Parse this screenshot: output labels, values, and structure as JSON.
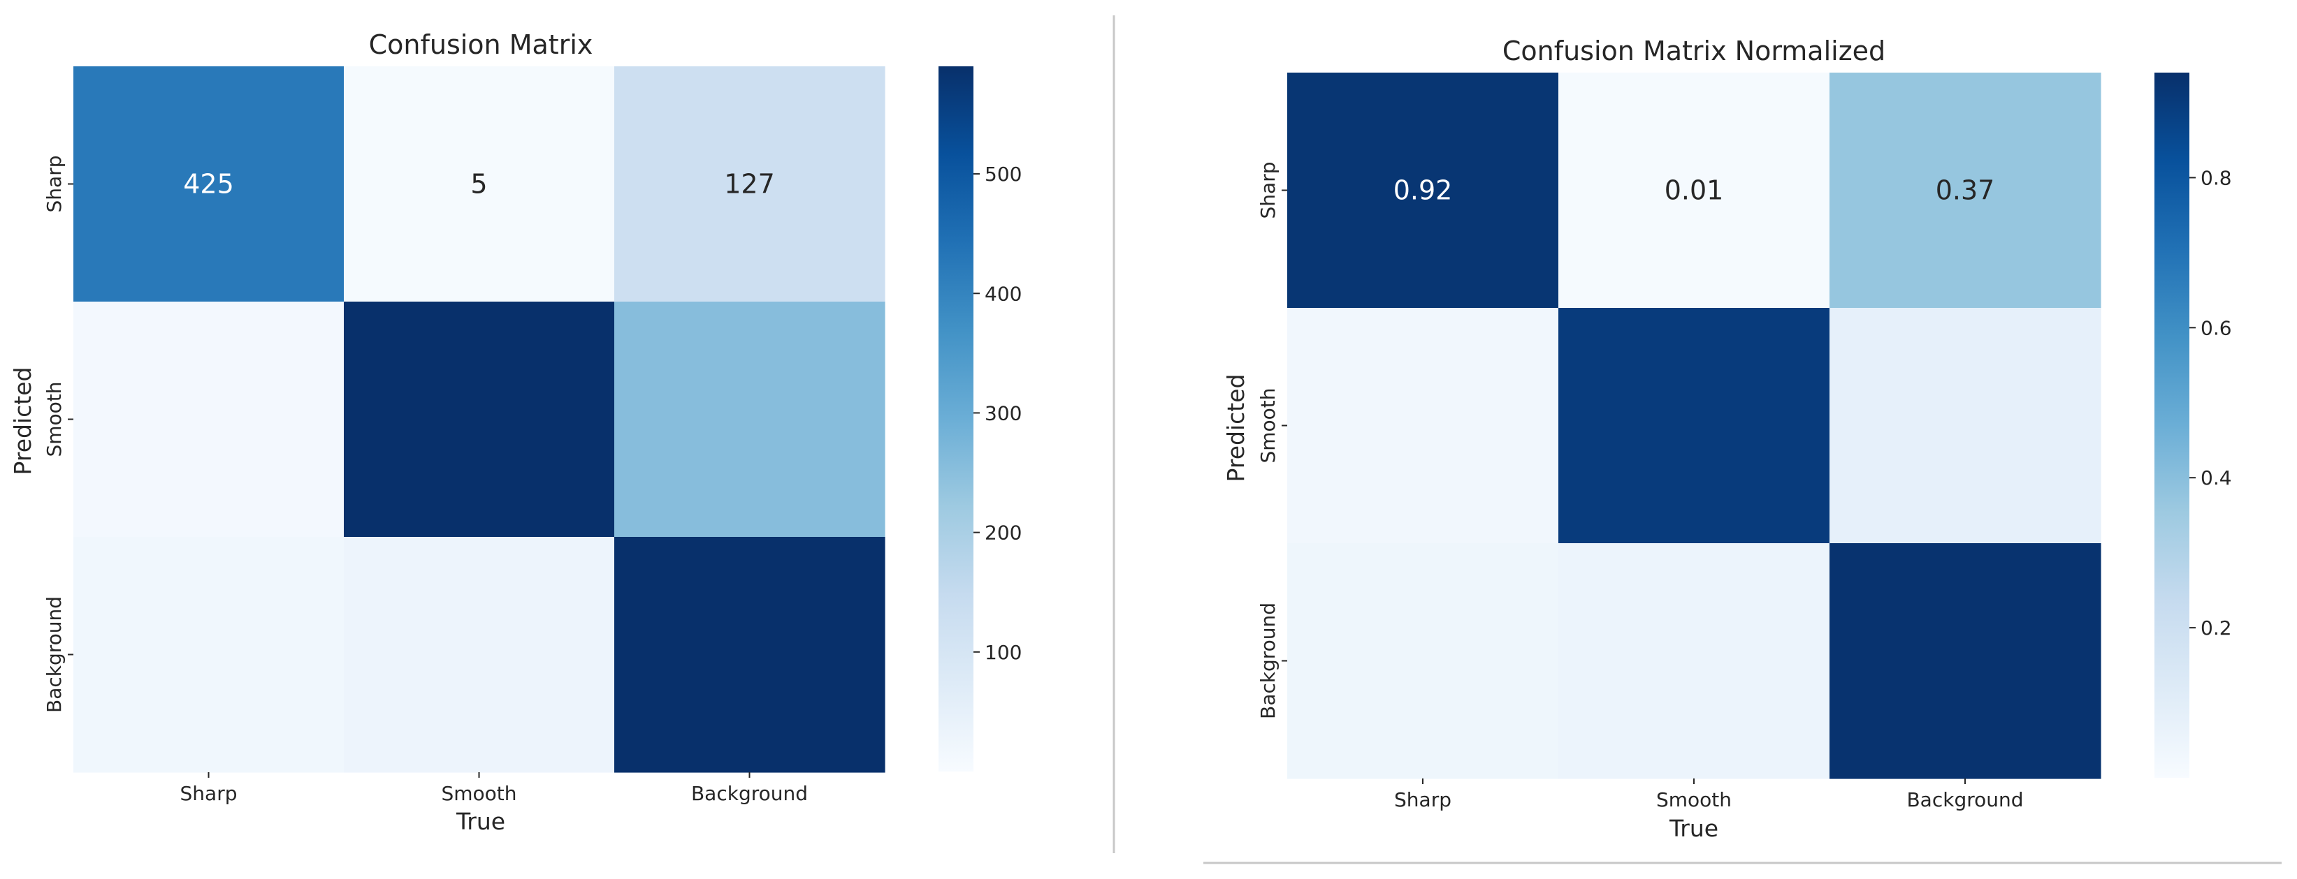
{
  "chart_data": [
    {
      "type": "heatmap",
      "title": "Confusion Matrix",
      "xlabel": "True",
      "ylabel": "Predicted",
      "x_categories": [
        "Sharp",
        "Smooth",
        "Background"
      ],
      "y_categories": [
        "Sharp",
        "Smooth",
        "Background"
      ],
      "values": [
        [
          425,
          5,
          127
        ],
        [
          13,
          590,
          255
        ],
        [
          20,
          30,
          590
        ]
      ],
      "cell_labels": [
        [
          "425",
          "5",
          "127"
        ],
        [
          "",
          "",
          ""
        ],
        [
          "",
          "",
          ""
        ]
      ],
      "colormap": "Blues",
      "vmin": 0,
      "vmax": 590,
      "colorbar_ticks": [
        100,
        200,
        300,
        400,
        500
      ],
      "colorbar_tick_labels": [
        "100",
        "200",
        "300",
        "400",
        "500"
      ]
    },
    {
      "type": "heatmap",
      "title": "Confusion Matrix Normalized",
      "xlabel": "True",
      "ylabel": "Predicted",
      "x_categories": [
        "Sharp",
        "Smooth",
        "Background"
      ],
      "y_categories": [
        "Sharp",
        "Smooth",
        "Background"
      ],
      "values": [
        [
          0.92,
          0.01,
          0.37
        ],
        [
          0.03,
          0.9,
          0.08
        ],
        [
          0.04,
          0.05,
          0.93
        ]
      ],
      "cell_labels": [
        [
          "0.92",
          "0.01",
          "0.37"
        ],
        [
          "",
          "",
          ""
        ],
        [
          "",
          "",
          ""
        ]
      ],
      "colormap": "Blues",
      "vmin": 0,
      "vmax": 0.94,
      "colorbar_ticks": [
        0.2,
        0.4,
        0.6,
        0.8
      ],
      "colorbar_tick_labels": [
        "0.2",
        "0.4",
        "0.6",
        "0.8"
      ]
    }
  ]
}
